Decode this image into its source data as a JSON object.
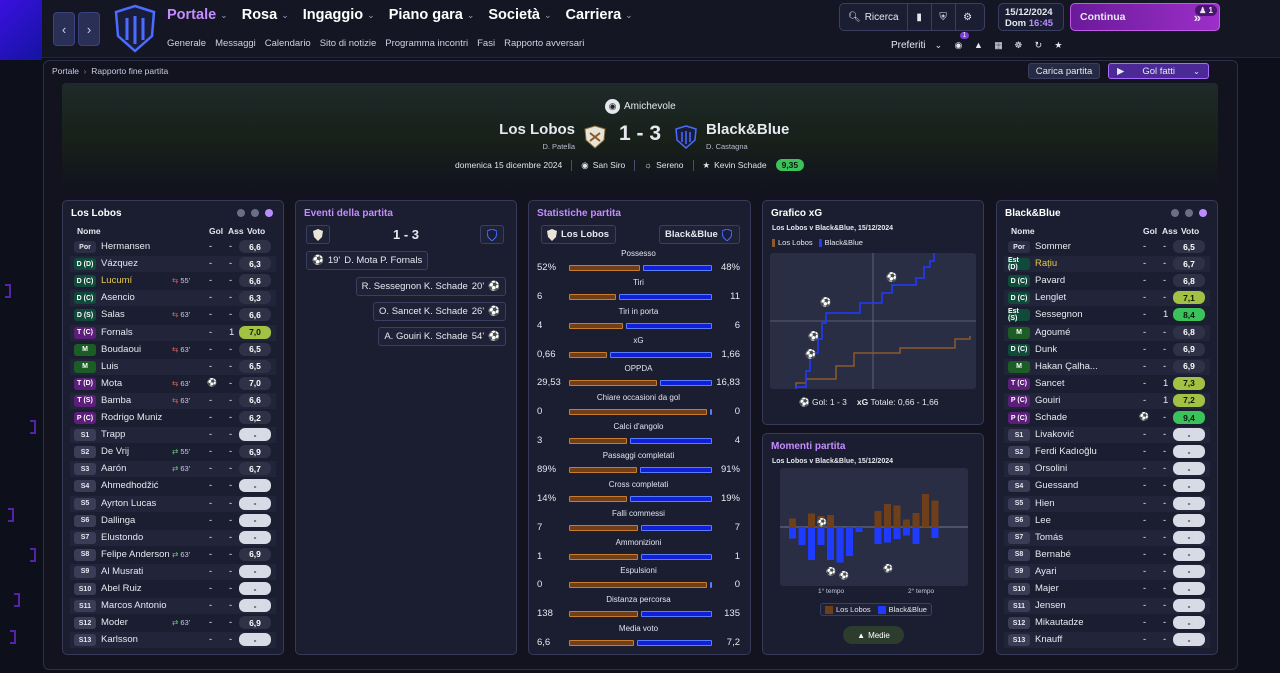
{
  "topbar": {
    "main_nav": [
      {
        "label": "Portale",
        "active": true
      },
      {
        "label": "Rosa"
      },
      {
        "label": "Ingaggio"
      },
      {
        "label": "Piano gara"
      },
      {
        "label": "Società"
      },
      {
        "label": "Carriera"
      }
    ],
    "sub_nav": [
      "Generale",
      "Messaggi",
      "Calendario",
      "Sito di notizie",
      "Programma incontri",
      "Fasi",
      "Rapporto avversari"
    ],
    "search_label": "Ricerca",
    "date": "15/12/2024",
    "day": "Dom",
    "time": "16:45",
    "continue_label": "Continua",
    "continue_badge": "1",
    "preferiti_label": "Preferiti",
    "notif_badge": "1"
  },
  "breadcrumb": {
    "root": "Portale",
    "current": "Rapporto fine partita"
  },
  "buttons": {
    "carica": "Carica partita",
    "golfatti": "Gol fatti"
  },
  "match": {
    "competition": "Amichevole",
    "home": "Los Lobos",
    "home_manager": "D. Patella",
    "away": "Black&Blue",
    "away_manager": "D. Castagna",
    "score": "1 - 3",
    "date": "domenica 15 dicembre 2024",
    "stadium": "San Siro",
    "weather": "Sereno",
    "motm": "Kevin Schade",
    "motm_rating": "9,35"
  },
  "columns": {
    "name": "Nome",
    "gol": "Gol",
    "ass": "Ass",
    "voto": "Voto"
  },
  "home_team": {
    "title": "Los Lobos",
    "players": [
      {
        "pos": "Por",
        "name": "Hermansen",
        "gol": "-",
        "ass": "-",
        "voto": "6,6",
        "cls": "por"
      },
      {
        "pos": "D (D)",
        "name": "Vázquez",
        "gol": "-",
        "ass": "-",
        "voto": "6,3",
        "cls": "d"
      },
      {
        "pos": "D (C)",
        "name": "Lucumí",
        "gol": "-",
        "ass": "-",
        "voto": "6,6",
        "cls": "d",
        "sub": "55'",
        "subdir": "out",
        "yellow": true
      },
      {
        "pos": "D (C)",
        "name": "Asencio",
        "gol": "-",
        "ass": "-",
        "voto": "6,3",
        "cls": "d"
      },
      {
        "pos": "D (S)",
        "name": "Salas",
        "gol": "-",
        "ass": "-",
        "voto": "6,6",
        "cls": "d",
        "sub": "63'",
        "subdir": "out"
      },
      {
        "pos": "T (C)",
        "name": "Fornals",
        "gol": "-",
        "ass": "1",
        "voto": "7,0",
        "cls": "t",
        "g": "g1"
      },
      {
        "pos": "M",
        "name": "Boudaoui",
        "gol": "-",
        "ass": "-",
        "voto": "6,5",
        "cls": "m",
        "sub": "63'",
        "subdir": "out"
      },
      {
        "pos": "M",
        "name": "Luis",
        "gol": "-",
        "ass": "-",
        "voto": "6,5",
        "cls": "m"
      },
      {
        "pos": "T (D)",
        "name": "Mota",
        "gol": "",
        "ass": "-",
        "voto": "7,0",
        "cls": "t",
        "sub": "63'",
        "subdir": "out",
        "goal": true
      },
      {
        "pos": "T (S)",
        "name": "Bamba",
        "gol": "-",
        "ass": "-",
        "voto": "6,6",
        "cls": "t",
        "sub": "63'",
        "subdir": "out"
      },
      {
        "pos": "P (C)",
        "name": "Rodrigo Muniz",
        "gol": "-",
        "ass": "-",
        "voto": "6,2",
        "cls": "t"
      },
      {
        "pos": "S1",
        "name": "Trapp",
        "gol": "-",
        "ass": "-",
        "voto": "-",
        "cls": "s"
      },
      {
        "pos": "S2",
        "name": "De Vrij",
        "gol": "-",
        "ass": "-",
        "voto": "6,9",
        "cls": "s",
        "sub": "55'",
        "subdir": "in"
      },
      {
        "pos": "S3",
        "name": "Aarón",
        "gol": "-",
        "ass": "-",
        "voto": "6,7",
        "cls": "s",
        "sub": "63'",
        "subdir": "in"
      },
      {
        "pos": "S4",
        "name": "Ahmedhodžić",
        "gol": "-",
        "ass": "-",
        "voto": "-",
        "cls": "s"
      },
      {
        "pos": "S5",
        "name": "Ayrton Lucas",
        "gol": "-",
        "ass": "-",
        "voto": "-",
        "cls": "s"
      },
      {
        "pos": "S6",
        "name": "Dallinga",
        "gol": "-",
        "ass": "-",
        "voto": "-",
        "cls": "s"
      },
      {
        "pos": "S7",
        "name": "Elustondo",
        "gol": "-",
        "ass": "-",
        "voto": "-",
        "cls": "s"
      },
      {
        "pos": "S8",
        "name": "Felipe Anderson",
        "gol": "-",
        "ass": "-",
        "voto": "6,9",
        "cls": "s",
        "sub": "63'",
        "subdir": "in"
      },
      {
        "pos": "S9",
        "name": "Al Musrati",
        "gol": "-",
        "ass": "-",
        "voto": "-",
        "cls": "s"
      },
      {
        "pos": "S10",
        "name": "Abel Ruiz",
        "gol": "-",
        "ass": "-",
        "voto": "-",
        "cls": "s"
      },
      {
        "pos": "S11",
        "name": "Marcos Antonio",
        "gol": "-",
        "ass": "-",
        "voto": "-",
        "cls": "s"
      },
      {
        "pos": "S12",
        "name": "Moder",
        "gol": "-",
        "ass": "-",
        "voto": "6,9",
        "cls": "s",
        "sub": "63'",
        "subdir": "in"
      },
      {
        "pos": "S13",
        "name": "Karlsson",
        "gol": "-",
        "ass": "-",
        "voto": "-",
        "cls": "s"
      }
    ]
  },
  "away_team": {
    "title": "Black&Blue",
    "players": [
      {
        "pos": "Por",
        "name": "Sommer",
        "gol": "-",
        "ass": "-",
        "voto": "6,5",
        "cls": "por"
      },
      {
        "pos": "Est (D)",
        "name": "Rațiu",
        "gol": "-",
        "ass": "-",
        "voto": "6,7",
        "cls": "d",
        "yellow": true
      },
      {
        "pos": "D (C)",
        "name": "Pavard",
        "gol": "-",
        "ass": "-",
        "voto": "6,8",
        "cls": "d"
      },
      {
        "pos": "D (C)",
        "name": "Lenglet",
        "gol": "-",
        "ass": "-",
        "voto": "7,1",
        "cls": "d",
        "g": "g1"
      },
      {
        "pos": "Est (S)",
        "name": "Sessegnon",
        "gol": "-",
        "ass": "1",
        "voto": "8,4",
        "cls": "d",
        "g": "g2"
      },
      {
        "pos": "M",
        "name": "Agoumé",
        "gol": "-",
        "ass": "-",
        "voto": "6,8",
        "cls": "m"
      },
      {
        "pos": "D (C)",
        "name": "Dunk",
        "gol": "-",
        "ass": "-",
        "voto": "6,9",
        "cls": "d"
      },
      {
        "pos": "M",
        "name": "Hakan Çalha...",
        "gol": "-",
        "ass": "-",
        "voto": "6,9",
        "cls": "m"
      },
      {
        "pos": "T (C)",
        "name": "Sancet",
        "gol": "-",
        "ass": "1",
        "voto": "7,3",
        "cls": "t",
        "g": "g1"
      },
      {
        "pos": "P (C)",
        "name": "Gouiri",
        "gol": "-",
        "ass": "1",
        "voto": "7,2",
        "cls": "t",
        "g": "g1"
      },
      {
        "pos": "P (C)",
        "name": "Schade",
        "gol": "",
        "ass": "-",
        "voto": "9,4",
        "cls": "t",
        "g": "g2",
        "goal": true
      },
      {
        "pos": "S1",
        "name": "Livaković",
        "gol": "-",
        "ass": "-",
        "voto": "-",
        "cls": "s"
      },
      {
        "pos": "S2",
        "name": "Ferdi Kadıoğlu",
        "gol": "-",
        "ass": "-",
        "voto": "-",
        "cls": "s"
      },
      {
        "pos": "S3",
        "name": "Orsolini",
        "gol": "-",
        "ass": "-",
        "voto": "-",
        "cls": "s"
      },
      {
        "pos": "S4",
        "name": "Guessand",
        "gol": "-",
        "ass": "-",
        "voto": "-",
        "cls": "s"
      },
      {
        "pos": "S5",
        "name": "Hien",
        "gol": "-",
        "ass": "-",
        "voto": "-",
        "cls": "s"
      },
      {
        "pos": "S6",
        "name": "Lee",
        "gol": "-",
        "ass": "-",
        "voto": "-",
        "cls": "s"
      },
      {
        "pos": "S7",
        "name": "Tomás",
        "gol": "-",
        "ass": "-",
        "voto": "-",
        "cls": "s"
      },
      {
        "pos": "S8",
        "name": "Bernabé",
        "gol": "-",
        "ass": "-",
        "voto": "-",
        "cls": "s"
      },
      {
        "pos": "S9",
        "name": "Ayari",
        "gol": "-",
        "ass": "-",
        "voto": "-",
        "cls": "s"
      },
      {
        "pos": "S10",
        "name": "Majer",
        "gol": "-",
        "ass": "-",
        "voto": "-",
        "cls": "s"
      },
      {
        "pos": "S11",
        "name": "Jensen",
        "gol": "-",
        "ass": "-",
        "voto": "-",
        "cls": "s"
      },
      {
        "pos": "S12",
        "name": "Mikautadze",
        "gol": "-",
        "ass": "-",
        "voto": "-",
        "cls": "s"
      },
      {
        "pos": "S13",
        "name": "Knauff",
        "gol": "-",
        "ass": "-",
        "voto": "-",
        "cls": "s"
      }
    ]
  },
  "events": {
    "title": "Eventi della partita",
    "score": "1 - 3",
    "items": [
      {
        "side": "home",
        "minute": "19'",
        "text": "D. Mota P. Fornals"
      },
      {
        "side": "away",
        "minute": "20'",
        "text": "R. Sessegnon K. Schade"
      },
      {
        "side": "away",
        "minute": "26'",
        "text": "O. Sancet K. Schade"
      },
      {
        "side": "away",
        "minute": "54'",
        "text": "A. Gouiri K. Schade"
      }
    ]
  },
  "stats": {
    "title": "Statistiche partita",
    "home": "Los Lobos",
    "away": "Black&Blue",
    "rows": [
      {
        "label": "Possesso",
        "home": "52%",
        "away": "48%",
        "h": 52,
        "a": 48
      },
      {
        "label": "Tiri",
        "home": "6",
        "away": "11",
        "h": 6,
        "a": 11
      },
      {
        "label": "Tiri in porta",
        "home": "4",
        "away": "6",
        "h": 4,
        "a": 6
      },
      {
        "label": "xG",
        "home": "0,66",
        "away": "1,66",
        "h": 0.66,
        "a": 1.66
      },
      {
        "label": "OPPDA",
        "home": "29,53",
        "away": "16,83",
        "h": 29.53,
        "a": 16.83
      },
      {
        "label": "Chiare occasioni da gol",
        "home": "0",
        "away": "0",
        "h": 0,
        "a": 0
      },
      {
        "label": "Calci d'angolo",
        "home": "3",
        "away": "4",
        "h": 3,
        "a": 4
      },
      {
        "label": "Passaggi completati",
        "home": "89%",
        "away": "91%",
        "h": 89,
        "a": 91
      },
      {
        "label": "Cross completati",
        "home": "14%",
        "away": "19%",
        "h": 14,
        "a": 19
      },
      {
        "label": "Falli commessi",
        "home": "7",
        "away": "7",
        "h": 7,
        "a": 7
      },
      {
        "label": "Ammonizioni",
        "home": "1",
        "away": "1",
        "h": 1,
        "a": 1
      },
      {
        "label": "Espulsioni",
        "home": "0",
        "away": "0",
        "h": 0,
        "a": 0
      },
      {
        "label": "Distanza percorsa",
        "home": "138",
        "away": "135",
        "h": 138,
        "a": 135
      },
      {
        "label": "Media voto",
        "home": "6,6",
        "away": "7,2",
        "h": 6.6,
        "a": 7.2
      }
    ]
  },
  "xg": {
    "title": "Grafico xG",
    "subtitle": "Los Lobos v Black&Blue, 15/12/2024",
    "legend_home": "Los Lobos",
    "legend_away": "Black&Blue",
    "goals_label": "Gol: 1 - 3",
    "xg_label": "xG",
    "xg_total": "Totale: 0,66 - 1,66",
    "home_color": "#8a5a2a",
    "away_color": "#1f3bff"
  },
  "momenti": {
    "title": "Momenti partita",
    "subtitle": "Los Lobos v Black&Blue, 15/12/2024",
    "first_half": "1° tempo",
    "second_half": "2° tempo",
    "legend_home": "Los Lobos",
    "legend_away": "Black&Blue",
    "medie": "Medie"
  }
}
